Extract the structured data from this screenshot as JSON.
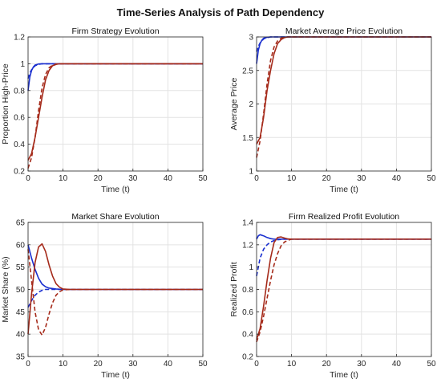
{
  "figure": {
    "title": "Time-Series Analysis of Path Dependency"
  },
  "colors": {
    "blue": "#1a2fcf",
    "red": "#a52a1a",
    "grid": "#e3e3e3",
    "axis": "#262626"
  },
  "chart_data": [
    {
      "id": "strategy",
      "type": "line",
      "title": "Firm Strategy Evolution",
      "xlabel": "Time (t)",
      "ylabel": "Proportion High-Price",
      "xlim": [
        0,
        50
      ],
      "ylim": [
        0.2,
        1.2
      ],
      "xticks": [
        0,
        10,
        20,
        30,
        40,
        50
      ],
      "yticks": [
        0.2,
        0.4,
        0.6,
        0.8,
        1,
        1.2
      ],
      "grid": true,
      "series": [
        {
          "color": "blue",
          "style": "solid",
          "x": [
            0,
            0.5,
            1,
            1.5,
            2,
            3,
            4,
            6,
            8,
            10,
            50
          ],
          "y": [
            0.8,
            0.9,
            0.95,
            0.975,
            0.99,
            0.998,
            1,
            1,
            1,
            1,
            1
          ]
        },
        {
          "color": "blue",
          "style": "dashed",
          "x": [
            0,
            0.5,
            1,
            1.5,
            2,
            3,
            4,
            6,
            10,
            50
          ],
          "y": [
            0.89,
            0.93,
            0.955,
            0.97,
            0.985,
            0.995,
            1,
            1,
            1,
            1
          ]
        },
        {
          "color": "red",
          "style": "solid",
          "x": [
            0,
            1,
            2,
            3,
            4,
            5,
            6,
            7,
            8,
            9,
            10,
            50
          ],
          "y": [
            0.28,
            0.33,
            0.45,
            0.6,
            0.75,
            0.88,
            0.95,
            0.985,
            0.995,
            1,
            1,
            1
          ]
        },
        {
          "color": "red",
          "style": "dashed",
          "x": [
            0,
            1,
            2,
            3,
            4,
            5,
            6,
            7,
            8,
            9,
            10,
            50
          ],
          "y": [
            0.22,
            0.3,
            0.45,
            0.65,
            0.82,
            0.92,
            0.97,
            0.99,
            0.998,
            1,
            1,
            1
          ]
        }
      ]
    },
    {
      "id": "price",
      "type": "line",
      "title": "Market Average Price Evolution",
      "xlabel": "Time (t)",
      "ylabel": "Average Price",
      "xlim": [
        0,
        50
      ],
      "ylim": [
        1,
        3
      ],
      "xticks": [
        0,
        10,
        20,
        30,
        40,
        50
      ],
      "yticks": [
        1,
        1.5,
        2,
        2.5,
        3
      ],
      "grid": true,
      "series": [
        {
          "color": "blue",
          "style": "solid",
          "x": [
            0,
            0.5,
            1,
            1.5,
            2,
            3,
            4,
            6,
            50
          ],
          "y": [
            2.6,
            2.8,
            2.9,
            2.95,
            2.98,
            2.995,
            3,
            3,
            3
          ]
        },
        {
          "color": "blue",
          "style": "dashed",
          "x": [
            0,
            0.5,
            1,
            1.5,
            2,
            3,
            4,
            6,
            50
          ],
          "y": [
            2.78,
            2.86,
            2.91,
            2.94,
            2.97,
            2.99,
            3,
            3,
            3
          ]
        },
        {
          "color": "red",
          "style": "solid",
          "x": [
            0,
            1,
            2,
            3,
            4,
            5,
            6,
            7,
            8,
            9,
            10,
            50
          ],
          "y": [
            1.4,
            1.5,
            1.8,
            2.2,
            2.5,
            2.75,
            2.9,
            2.96,
            2.99,
            3,
            3,
            3
          ]
        },
        {
          "color": "red",
          "style": "dashed",
          "x": [
            0,
            1,
            2,
            3,
            4,
            5,
            6,
            7,
            8,
            9,
            10,
            50
          ],
          "y": [
            1.2,
            1.45,
            1.85,
            2.3,
            2.65,
            2.85,
            2.94,
            2.98,
            2.995,
            3,
            3,
            3
          ]
        }
      ]
    },
    {
      "id": "share",
      "type": "line",
      "title": "Market Share Evolution",
      "xlabel": "Time (t)",
      "ylabel": "Market Share (%)",
      "xlim": [
        0,
        50
      ],
      "ylim": [
        35,
        65
      ],
      "xticks": [
        0,
        10,
        20,
        30,
        40,
        50
      ],
      "yticks": [
        35,
        40,
        45,
        50,
        55,
        60,
        65
      ],
      "grid": true,
      "series": [
        {
          "color": "blue",
          "style": "solid",
          "x": [
            0,
            1,
            2,
            3,
            4,
            5,
            6,
            8,
            10,
            12,
            50
          ],
          "y": [
            60,
            57,
            54.5,
            52.5,
            51.2,
            50.6,
            50.3,
            50.1,
            50,
            50,
            50
          ]
        },
        {
          "color": "blue",
          "style": "dashed",
          "x": [
            0,
            1,
            2,
            3,
            4,
            5,
            6,
            8,
            10,
            50
          ],
          "y": [
            46,
            47.5,
            48.7,
            49.4,
            49.8,
            50,
            50,
            50,
            50,
            50
          ]
        },
        {
          "color": "red",
          "style": "solid",
          "x": [
            0,
            1,
            2,
            3,
            4,
            5,
            6,
            7,
            8,
            9,
            10,
            12,
            50
          ],
          "y": [
            40,
            49,
            56,
            59.5,
            60.2,
            58.5,
            55.5,
            53,
            51.3,
            50.5,
            50.1,
            50,
            50
          ]
        },
        {
          "color": "red",
          "style": "dashed",
          "x": [
            0,
            1,
            2,
            3,
            4,
            5,
            6,
            7,
            8,
            9,
            10,
            12,
            50
          ],
          "y": [
            59,
            52,
            45,
            41,
            39.8,
            41.5,
            44.5,
            47,
            48.7,
            49.5,
            49.9,
            50,
            50
          ]
        }
      ]
    },
    {
      "id": "profit",
      "type": "line",
      "title": "Firm Realized Profit Evolution",
      "xlabel": "Time (t)",
      "ylabel": "Realized Profit",
      "xlim": [
        0,
        50
      ],
      "ylim": [
        0.2,
        1.4
      ],
      "xticks": [
        0,
        10,
        20,
        30,
        40,
        50
      ],
      "yticks": [
        0.2,
        0.4,
        0.6,
        0.8,
        1,
        1.2,
        1.4
      ],
      "grid": true,
      "series": [
        {
          "color": "blue",
          "style": "solid",
          "x": [
            0,
            0.5,
            1,
            2,
            3,
            4,
            5,
            6,
            8,
            10,
            50
          ],
          "y": [
            1.25,
            1.28,
            1.29,
            1.28,
            1.265,
            1.255,
            1.25,
            1.25,
            1.25,
            1.25,
            1.25
          ]
        },
        {
          "color": "blue",
          "style": "dashed",
          "x": [
            0,
            1,
            2,
            3,
            4,
            5,
            6,
            8,
            10,
            50
          ],
          "y": [
            0.92,
            1.08,
            1.16,
            1.2,
            1.225,
            1.237,
            1.245,
            1.25,
            1.25,
            1.25
          ]
        },
        {
          "color": "red",
          "style": "solid",
          "x": [
            0,
            1,
            2,
            3,
            4,
            5,
            6,
            7,
            8,
            9,
            10,
            50
          ],
          "y": [
            0.35,
            0.45,
            0.65,
            0.88,
            1.08,
            1.22,
            1.265,
            1.27,
            1.26,
            1.252,
            1.25,
            1.25
          ]
        },
        {
          "color": "red",
          "style": "dashed",
          "x": [
            0,
            1,
            2,
            3,
            4,
            5,
            6,
            7,
            8,
            9,
            10,
            50
          ],
          "y": [
            0.33,
            0.42,
            0.56,
            0.72,
            0.88,
            1.02,
            1.12,
            1.19,
            1.225,
            1.24,
            1.25,
            1.25
          ]
        }
      ]
    }
  ]
}
